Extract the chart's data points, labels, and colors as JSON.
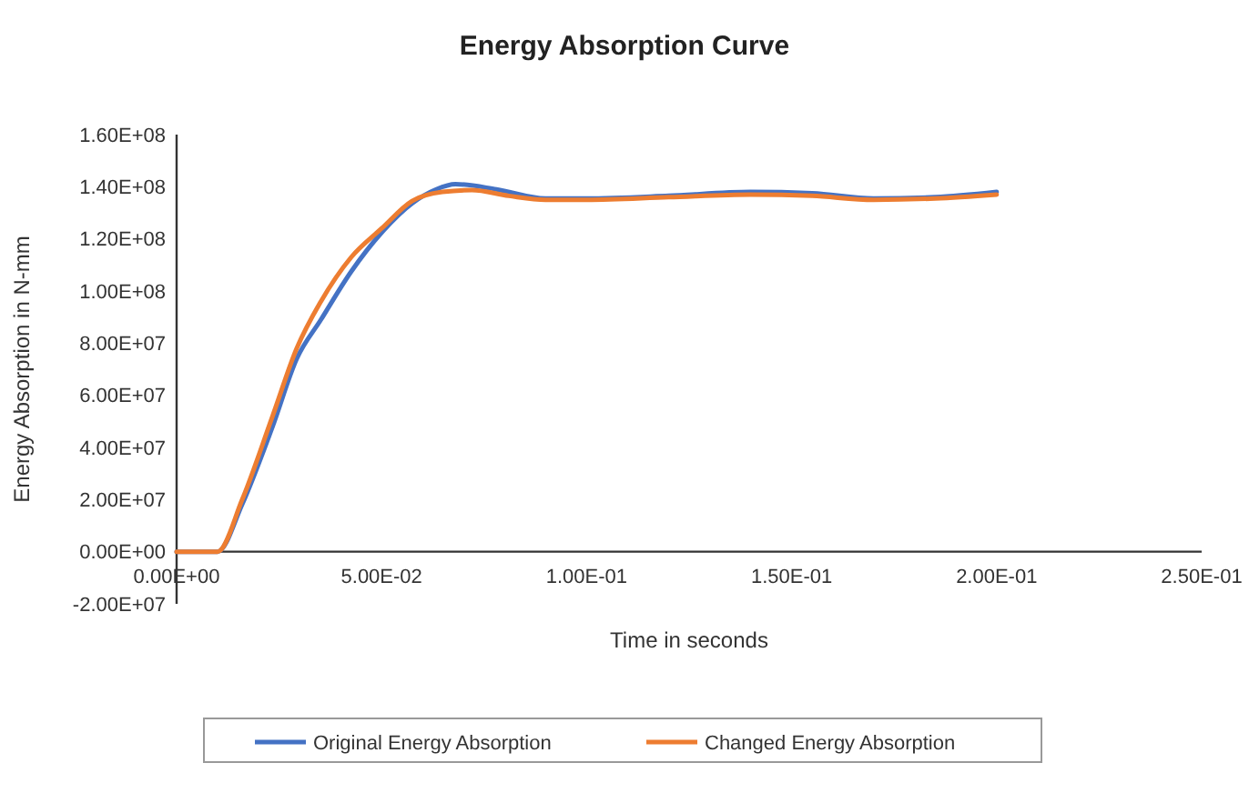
{
  "chart_data": {
    "type": "line",
    "title": "Energy Absorption Curve",
    "xlabel": "Time in seconds",
    "ylabel": "Energy Absorption in N-mm",
    "xlim": [
      0,
      0.25
    ],
    "xticks": [
      {
        "value": 0,
        "label": "0.00E+00"
      },
      {
        "value": 0.05,
        "label": "5.00E-02"
      },
      {
        "value": 0.1,
        "label": "1.00E-01"
      },
      {
        "value": 0.15,
        "label": "1.50E-01"
      },
      {
        "value": 0.2,
        "label": "2.00E-01"
      },
      {
        "value": 0.25,
        "label": "2.50E-01"
      }
    ],
    "ylim": [
      -20000000,
      160000000
    ],
    "yticks": [
      {
        "value": -20000000,
        "label": "-2.00E+07"
      },
      {
        "value": 0,
        "label": "0.00E+00"
      },
      {
        "value": 20000000,
        "label": "2.00E+07"
      },
      {
        "value": 40000000,
        "label": "4.00E+07"
      },
      {
        "value": 60000000,
        "label": "6.00E+07"
      },
      {
        "value": 80000000,
        "label": "8.00E+07"
      },
      {
        "value": 100000000,
        "label": "1.00E+08"
      },
      {
        "value": 120000000,
        "label": "1.20E+08"
      },
      {
        "value": 140000000,
        "label": "1.40E+08"
      },
      {
        "value": 160000000,
        "label": "1.60E+08"
      }
    ],
    "grid": false,
    "legend": "bottom",
    "marker": "none",
    "line_style": "solid",
    "series": [
      {
        "name": "Original Energy Absorption",
        "color": "#4472c4",
        "x": [
          0,
          0.01,
          0.016,
          0.0234,
          0.0293,
          0.0352,
          0.0426,
          0.05,
          0.0574,
          0.0633,
          0.068,
          0.078,
          0.09,
          0.1,
          0.12,
          0.14,
          0.155,
          0.17,
          0.185,
          0.2
        ],
        "values": [
          0,
          0,
          18200000,
          48000000,
          74000000,
          89000000,
          107500000,
          122400000,
          133600000,
          139000000,
          141000000,
          139000000,
          135500000,
          135500000,
          136500000,
          138000000,
          137500000,
          135500000,
          136000000,
          138000000
        ]
      },
      {
        "name": "Changed Energy Absorption",
        "color": "#ed7d31",
        "x": [
          0,
          0.01,
          0.016,
          0.0234,
          0.0293,
          0.0352,
          0.0426,
          0.05,
          0.0574,
          0.0648,
          0.072,
          0.081,
          0.09,
          0.1,
          0.12,
          0.14,
          0.155,
          0.17,
          0.185,
          0.2
        ],
        "values": [
          0,
          0,
          20000000,
          52000000,
          78000000,
          96000000,
          113000000,
          124000000,
          134500000,
          138000000,
          138700000,
          136500000,
          135000000,
          135000000,
          136000000,
          137000000,
          136500000,
          135000000,
          135500000,
          137000000
        ]
      }
    ]
  }
}
